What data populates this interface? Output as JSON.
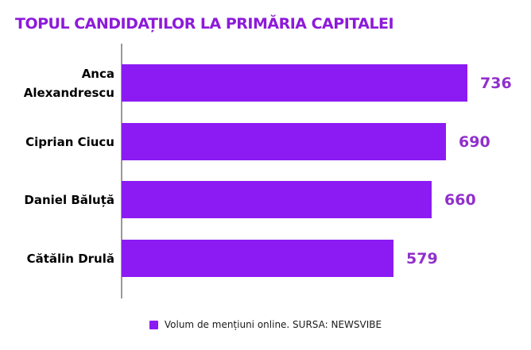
{
  "title": "TOPUL CANDIDAȚILOR LA PRIMĂRIA CAPITALEI",
  "chart_data": {
    "type": "bar",
    "orientation": "horizontal",
    "title": "TOPUL CANDIDAȚILOR LA PRIMĂRIA CAPITALEI",
    "categories": [
      "Anca Alexandrescu",
      "Ciprian Ciucu",
      "Daniel Băluță",
      "Cătălin Drulă"
    ],
    "values": [
      736,
      690,
      660,
      579
    ],
    "xlim": [
      0,
      736
    ],
    "grid": false,
    "value_labels_shown": true,
    "legend_position": "bottom-center",
    "legend_label": "Volum de mențiuni online. SURSA: NEWSVIBE"
  },
  "legend": {
    "label": "Volum de mențiuni online. SURSA: NEWSVIBE"
  },
  "colors": {
    "bar": "#8b1bf2",
    "title": "#8d1ad9",
    "value_label": "#9130cb",
    "axis_line": "#999999",
    "category_label": "#000000",
    "legend_text": "#1a1a1a",
    "background": "#ffffff"
  }
}
